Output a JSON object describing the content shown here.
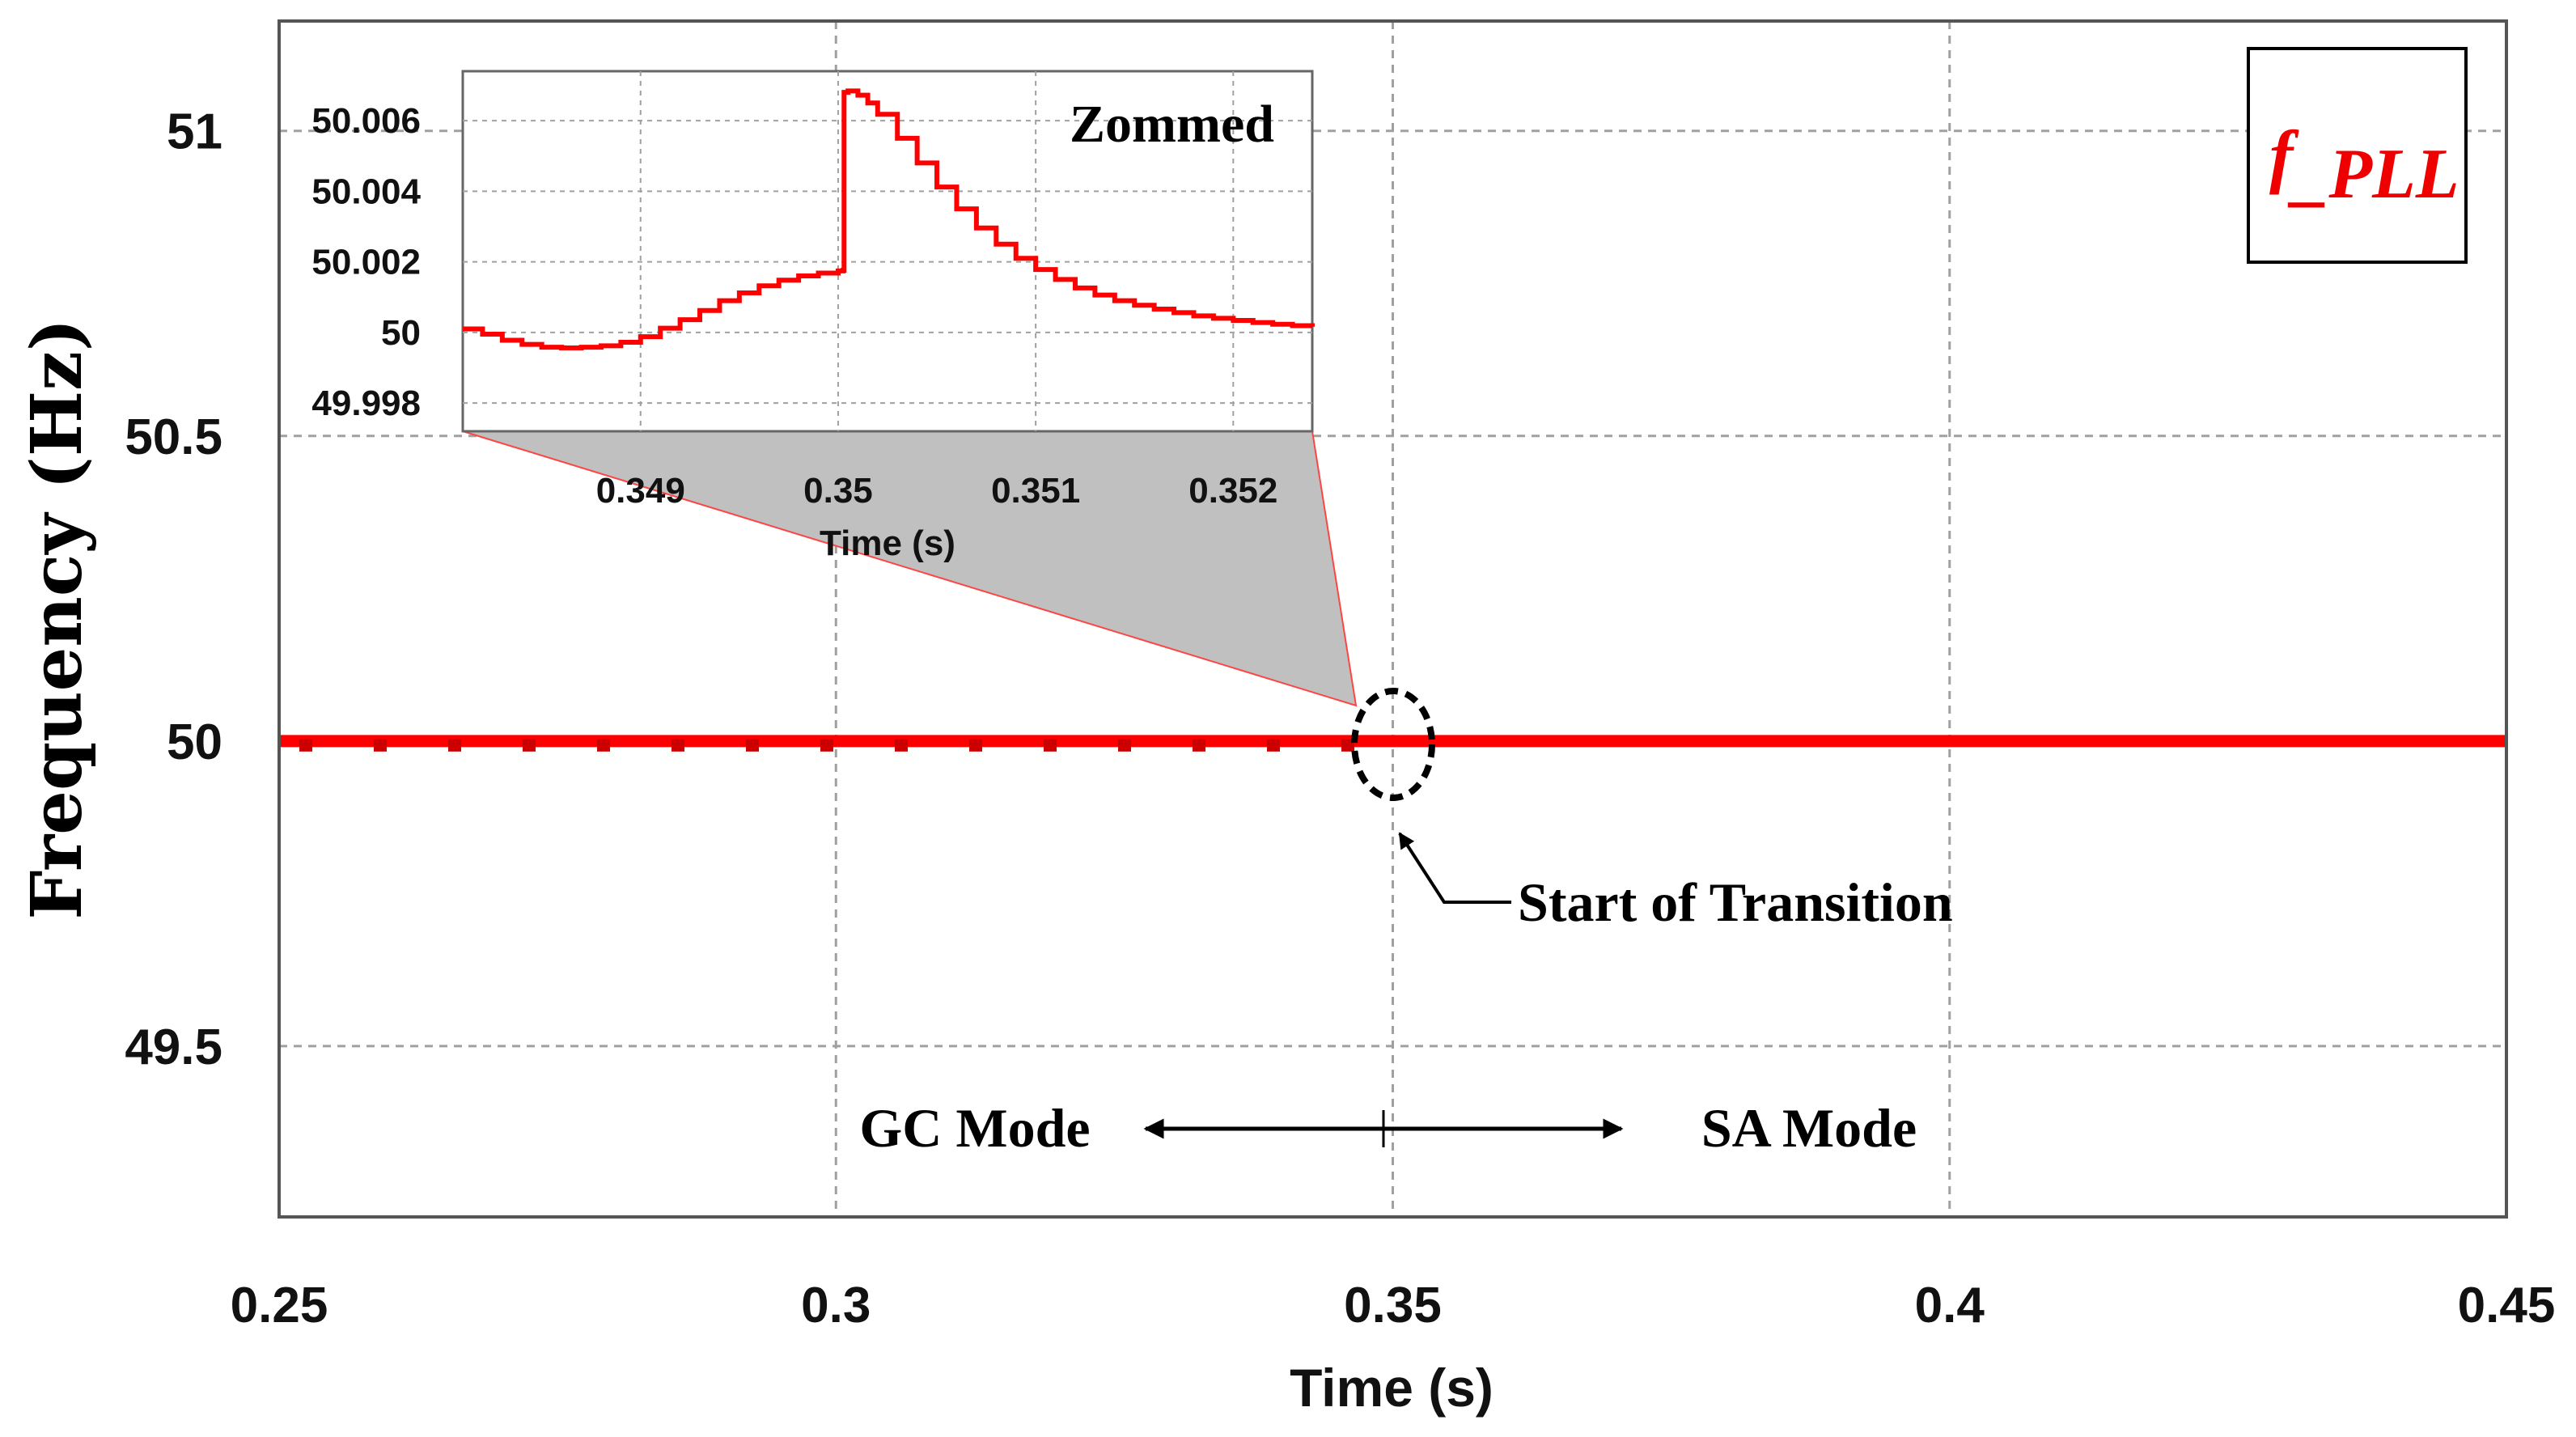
{
  "colors": {
    "signal": "#ff0000",
    "grid": "#a0a0a0",
    "zoom_fill": "#c0c0c0",
    "legend_text": "#ee0000"
  },
  "chart_data": [
    {
      "type": "line",
      "title": "",
      "xlabel": "Time (s)",
      "ylabel": "Frequency (Hz)",
      "xlim": [
        0.25,
        0.45
      ],
      "ylim": [
        49.22,
        51.18
      ],
      "x_ticks": [
        0.25,
        0.3,
        0.35,
        0.4,
        0.45
      ],
      "x_tick_labels": [
        "0.25",
        "0.3",
        "0.35",
        "0.4",
        "0.45"
      ],
      "y_ticks": [
        49.5,
        50,
        50.5,
        51
      ],
      "y_tick_labels": [
        "49.5",
        "50",
        "50.5",
        "51"
      ],
      "grid": true,
      "legend": "top-right",
      "series": [
        {
          "name": "f_PLL",
          "x": [
            0.25,
            0.3,
            0.35,
            0.4,
            0.45
          ],
          "values": [
            50,
            50,
            50,
            50,
            50
          ]
        }
      ],
      "annotations": {
        "transition_label": "Start of Transition",
        "transition_x": 0.35,
        "gc_mode": "GC Mode",
        "sa_mode": "SA Mode",
        "mode_boundary_x": 0.349
      },
      "legend_entry": {
        "base": "f",
        "subscript": "_PLL"
      }
    },
    {
      "type": "line",
      "title": "Zommed",
      "xlabel": "Time (s)",
      "ylabel": "",
      "xlim": [
        0.3481,
        0.3524
      ],
      "ylim": [
        49.9972,
        50.0074
      ],
      "x_ticks": [
        0.349,
        0.35,
        0.351,
        0.352
      ],
      "x_tick_labels": [
        "0.349",
        "0.35",
        "0.351",
        "0.352"
      ],
      "y_ticks": [
        49.998,
        50,
        50.002,
        50.004,
        50.006
      ],
      "y_tick_labels": [
        "49.998",
        "50",
        "50.002",
        "50.004",
        "50.006"
      ],
      "grid": true,
      "series": [
        {
          "name": "f_PLL zoomed",
          "x": [
            0.3481,
            0.3482,
            0.3483,
            0.3484,
            0.3485,
            0.3486,
            0.3487,
            0.3488,
            0.3489,
            0.349,
            0.3491,
            0.3492,
            0.3493,
            0.3494,
            0.3495,
            0.3496,
            0.3497,
            0.3498,
            0.3499,
            0.35,
            0.350025,
            0.35003,
            0.35005,
            0.3501,
            0.35015,
            0.3502,
            0.3503,
            0.3504,
            0.3505,
            0.3506,
            0.3507,
            0.3508,
            0.3509,
            0.351,
            0.3511,
            0.3512,
            0.3513,
            0.3514,
            0.3515,
            0.3516,
            0.3517,
            0.3518,
            0.3519,
            0.352,
            0.3521,
            0.3522,
            0.3523,
            0.3524
          ],
          "values": [
            50.0001,
            49.99995,
            49.99978,
            49.99966,
            49.99958,
            49.99956,
            49.99958,
            49.99962,
            49.99972,
            49.99988,
            50.00012,
            50.00036,
            50.00062,
            50.0009,
            50.00112,
            50.00132,
            50.00148,
            50.0016,
            50.00168,
            50.00174,
            50.00176,
            50.0068,
            50.00684,
            50.00672,
            50.0065,
            50.00618,
            50.0055,
            50.0048,
            50.00412,
            50.0035,
            50.00296,
            50.0025,
            50.0021,
            50.00178,
            50.0015,
            50.00126,
            50.00106,
            50.0009,
            50.00077,
            50.00066,
            50.00056,
            50.00047,
            50.0004,
            50.00034,
            50.00028,
            50.00023,
            50.00019,
            50.00016
          ]
        }
      ]
    }
  ]
}
